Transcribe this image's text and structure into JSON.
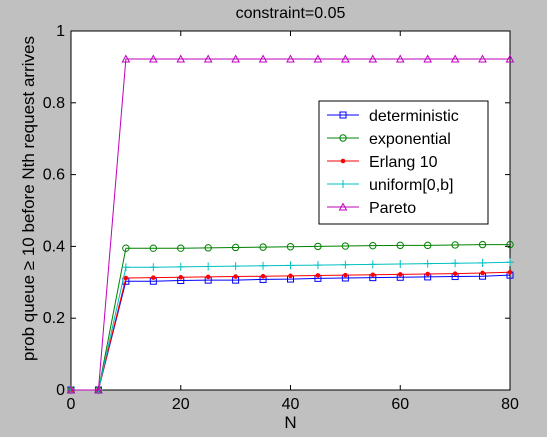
{
  "chart_data": {
    "type": "line",
    "title": "constraint=0.05",
    "xlabel": "N",
    "ylabel": "prob queue ≥ 10 before Nth request arrives",
    "xlim": [
      0,
      80
    ],
    "ylim": [
      0,
      1
    ],
    "xticks": [
      0,
      20,
      40,
      60,
      80
    ],
    "yticks": [
      0,
      0.2,
      0.4,
      0.6,
      0.8,
      1
    ],
    "ytick_labels": [
      "0",
      "0.2",
      "0.4",
      "0.6",
      "0.8",
      "1"
    ],
    "grid": false,
    "legend_position": "upper-right",
    "x": [
      0,
      5,
      10,
      15,
      20,
      25,
      30,
      35,
      40,
      45,
      50,
      55,
      60,
      65,
      70,
      75,
      80
    ],
    "series": [
      {
        "name": "deterministic",
        "color": "#0000ff",
        "marker": "square",
        "values": [
          0,
          0,
          0.303,
          0.303,
          0.305,
          0.306,
          0.306,
          0.308,
          0.309,
          0.311,
          0.312,
          0.313,
          0.314,
          0.315,
          0.316,
          0.317,
          0.32
        ]
      },
      {
        "name": "exponential",
        "color": "#008000",
        "marker": "circle",
        "values": [
          0,
          0,
          0.395,
          0.395,
          0.395,
          0.396,
          0.397,
          0.398,
          0.399,
          0.4,
          0.401,
          0.402,
          0.403,
          0.403,
          0.404,
          0.405,
          0.405
        ]
      },
      {
        "name": "Erlang 10",
        "color": "#ff0000",
        "marker": "dot",
        "values": [
          0,
          0,
          0.312,
          0.313,
          0.314,
          0.315,
          0.316,
          0.317,
          0.318,
          0.319,
          0.32,
          0.321,
          0.322,
          0.323,
          0.324,
          0.326,
          0.328
        ]
      },
      {
        "name": "uniform[0,b]",
        "color": "#00bfbf",
        "marker": "plus",
        "values": [
          0,
          0,
          0.342,
          0.342,
          0.343,
          0.344,
          0.345,
          0.346,
          0.347,
          0.348,
          0.349,
          0.35,
          0.351,
          0.352,
          0.353,
          0.354,
          0.356
        ]
      },
      {
        "name": "Pareto",
        "color": "#bf00bf",
        "marker": "triangle",
        "values": [
          0,
          0,
          0.922,
          0.922,
          0.922,
          0.922,
          0.922,
          0.922,
          0.922,
          0.922,
          0.922,
          0.922,
          0.922,
          0.922,
          0.922,
          0.922,
          0.922
        ]
      }
    ]
  }
}
